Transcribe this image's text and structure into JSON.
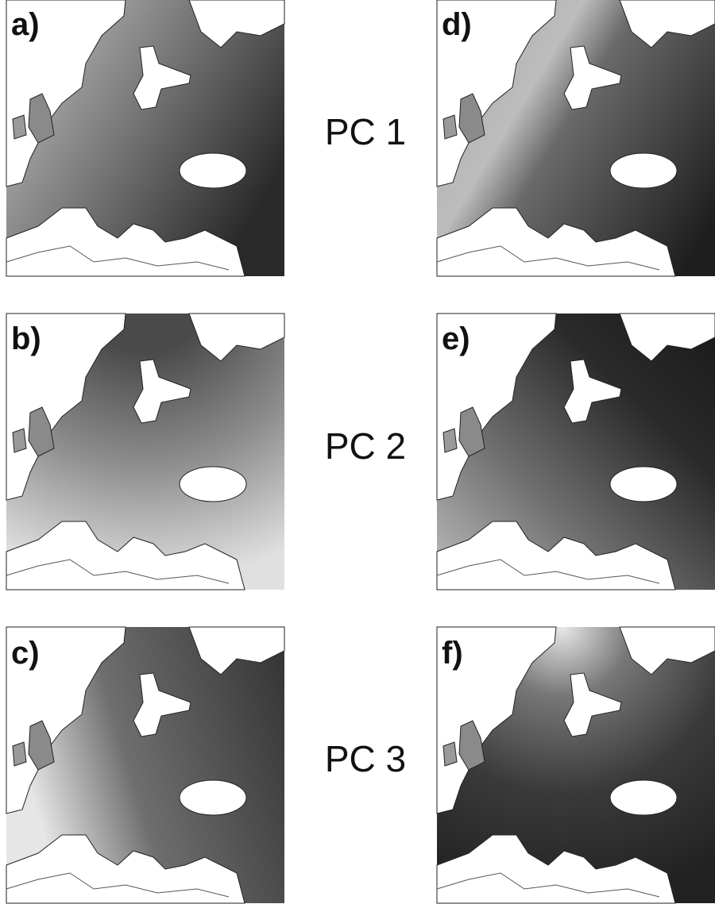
{
  "panels": [
    {
      "label": "a)"
    },
    {
      "label": "b)"
    },
    {
      "label": "c)"
    },
    {
      "label": "d)"
    },
    {
      "label": "e)"
    },
    {
      "label": "f)"
    }
  ],
  "pc_labels": [
    "PC 1",
    "PC 2",
    "PC 3"
  ]
}
